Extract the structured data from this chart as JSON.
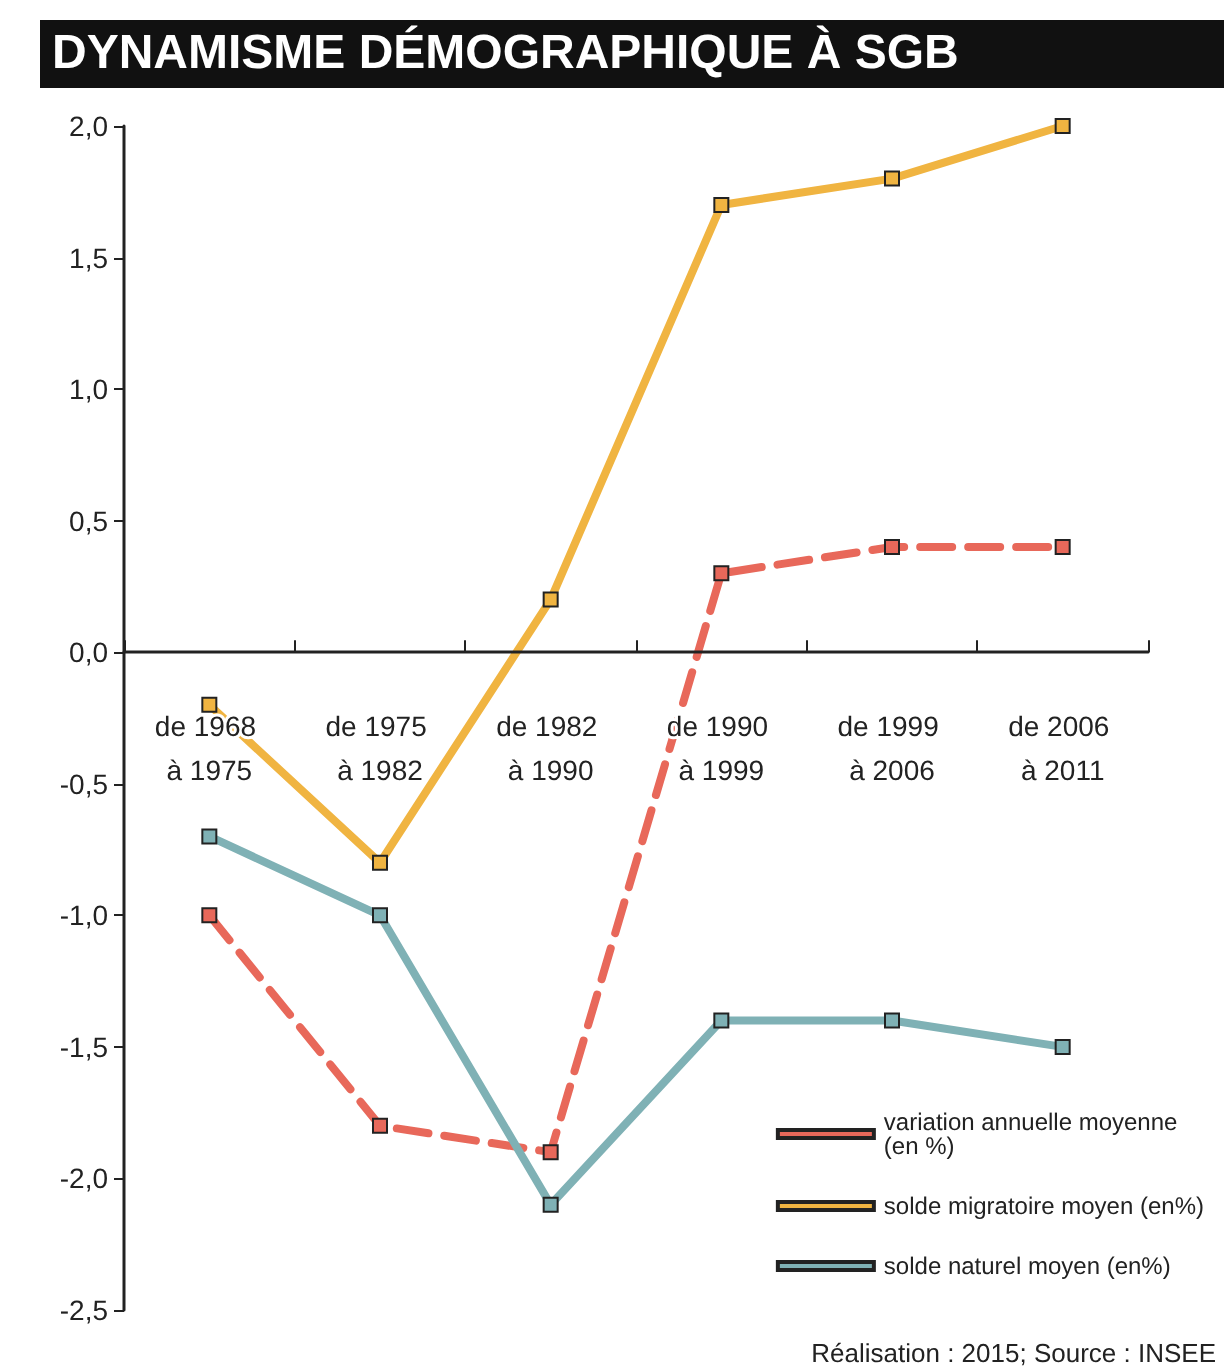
{
  "chart_data": {
    "type": "line",
    "title": "DYNAMISME DÉMOGRAPHIQUE À SGB",
    "categories": [
      "de 1968 à 1975",
      "de 1975 à 1982",
      "de 1982 à 1990",
      "de 1990 à 1999",
      "de 1999 à 2006",
      "de 2006 à 2011"
    ],
    "series": [
      {
        "name": "variation annuelle moyenne (en %)",
        "color": "#e8685a",
        "line_style": "dashed",
        "values": [
          -1.0,
          -1.8,
          -1.9,
          0.3,
          0.4,
          0.4
        ]
      },
      {
        "name": "solde migratoire moyen (en%)",
        "color": "#f0b441",
        "line_style": "solid",
        "values": [
          -0.2,
          -0.8,
          0.2,
          1.7,
          1.8,
          2.0
        ]
      },
      {
        "name": "solde naturel moyen (en%)",
        "color": "#7fb1b5",
        "line_style": "solid",
        "values": [
          -0.7,
          -1.0,
          -2.1,
          -1.4,
          -1.4,
          -1.5
        ]
      }
    ],
    "ylim": [
      -2.5,
      2.0
    ],
    "yticks": [
      {
        "value": -2.5,
        "label": "-2,5"
      },
      {
        "value": -2.0,
        "label": "-2,0"
      },
      {
        "value": -1.5,
        "label": "-1,5"
      },
      {
        "value": -1.0,
        "label": "-1,0"
      },
      {
        "value": -0.5,
        "label": "-0,5"
      },
      {
        "value": 0,
        "label": "0,0"
      },
      {
        "value": 0.5,
        "label": "0,5"
      },
      {
        "value": 1.0,
        "label": "1,0"
      },
      {
        "value": 1.5,
        "label": "1,5"
      },
      {
        "value": 2.0,
        "label": "2,0"
      }
    ],
    "marker": "square",
    "grid": false,
    "legend": "bottom right",
    "annotations": [
      "Réalisation : 2015; Source : INSEE"
    ]
  }
}
